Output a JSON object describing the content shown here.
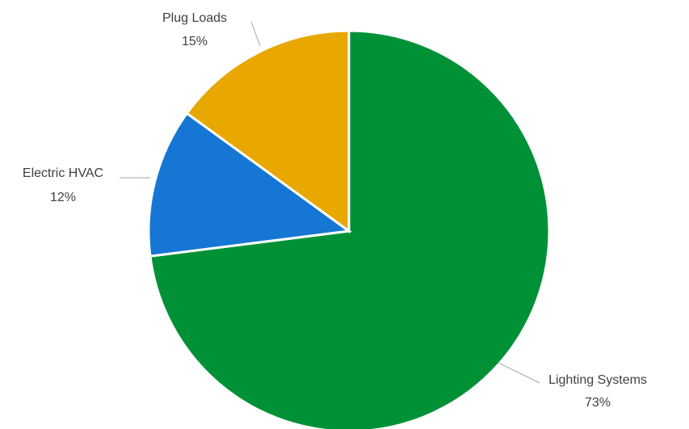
{
  "chart_data": {
    "type": "pie",
    "title": "",
    "start_angle_deg": 0,
    "direction": "clockwise",
    "slices": [
      {
        "category": "Lighting Systems",
        "value": 73,
        "label": "73%",
        "color": "#009136"
      },
      {
        "category": "Electric HVAC",
        "value": 12,
        "label": "12%",
        "color": "#1577D3"
      },
      {
        "category": "Plug Loads",
        "value": 15,
        "label": "15%",
        "color": "#E8A800"
      }
    ],
    "legend": "none",
    "data_labels": "outside-with-leader-lines"
  }
}
